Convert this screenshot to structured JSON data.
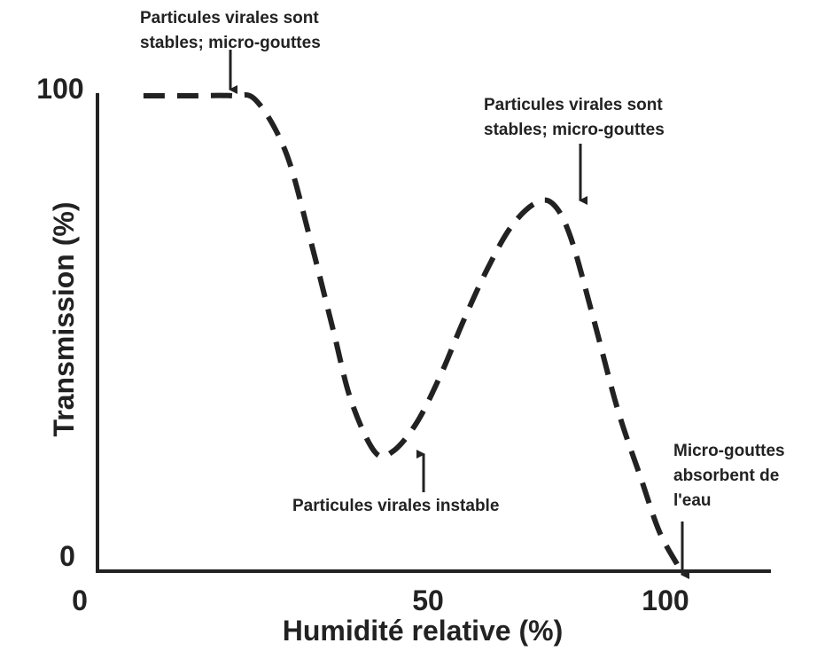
{
  "chart_data": {
    "type": "line",
    "title": "",
    "xlabel": "Humidité relative (%)",
    "ylabel": "Transmission (%)",
    "xlim": [
      0,
      120
    ],
    "ylim": [
      0,
      100
    ],
    "grid": false,
    "x_ticks": [
      "0",
      "50",
      "100"
    ],
    "y_ticks": [
      "0",
      "100"
    ],
    "series": [
      {
        "style": "dashed",
        "color": "#222222",
        "x": [
          10,
          18,
          25,
          29,
          34,
          38,
          42,
          45,
          49,
          52,
          56,
          60,
          64,
          68,
          72,
          76,
          79,
          82,
          86,
          90,
          94,
          97,
          100
        ],
        "y": [
          100,
          100,
          100,
          99,
          88,
          70,
          50,
          35,
          24,
          24,
          30,
          40,
          52,
          63,
          72,
          77,
          77,
          70,
          52,
          33,
          18,
          7,
          0
        ]
      }
    ],
    "annotations": [
      {
        "id": "a1",
        "lines": [
          "Particules virales sont",
          "stables; micro-gouttes"
        ],
        "x": 23,
        "y": 100
      },
      {
        "id": "a2",
        "lines": [
          "Particules virales sont",
          "stables; micro-gouttes"
        ],
        "x": 82,
        "y": 77
      },
      {
        "id": "a3",
        "lines": [
          "Particules virales instable"
        ],
        "x": 51,
        "y": 24
      },
      {
        "id": "a4",
        "lines": [
          "Micro-gouttes",
          "absorbent de",
          "l'eau"
        ],
        "x": 101,
        "y": 0
      }
    ]
  }
}
